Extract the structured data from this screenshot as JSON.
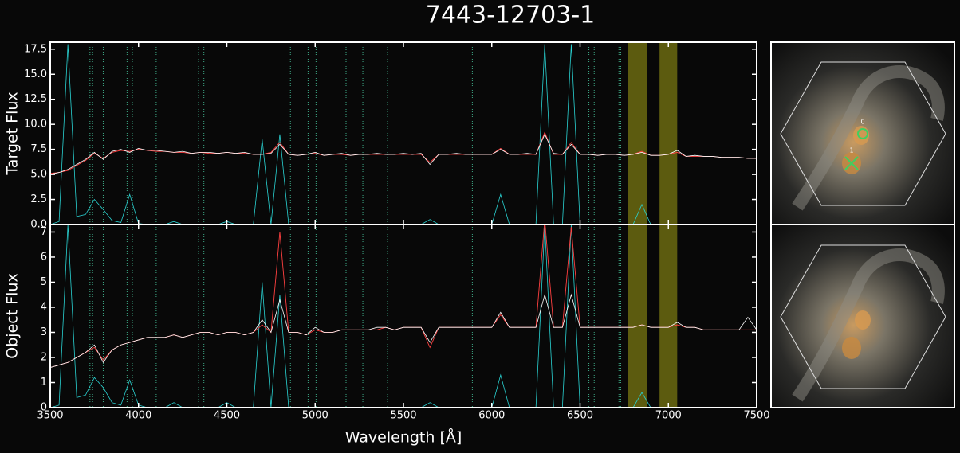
{
  "title": "7443-12703-1",
  "spectral_features": {
    "bands": [
      [
        6770,
        6880
      ],
      [
        6950,
        7050
      ]
    ],
    "band_color": "#6b6a10",
    "lines": [
      3725,
      3740,
      3800,
      3935,
      3965,
      4100,
      4340,
      4370,
      4860,
      4960,
      5005,
      5175,
      5270,
      5410,
      5890,
      6550,
      6580,
      6720,
      6730
    ],
    "line_color": "#3fae8a"
  },
  "image_labels": [
    "0",
    "1"
  ],
  "chart_data": [
    {
      "type": "line",
      "ylabel": "Target Flux",
      "xlim": [
        3500,
        7500
      ],
      "ylim": [
        0,
        18.2
      ],
      "yticks": [
        {
          "value": 0,
          "label": "0.0"
        },
        2.5,
        {
          "value": 5,
          "label": "5.0"
        },
        7.5,
        {
          "value": 10,
          "label": "10.0"
        },
        12.5,
        {
          "value": 15,
          "label": "15.0"
        },
        17.5
      ],
      "x": [
        3500,
        3550,
        3600,
        3650,
        3700,
        3750,
        3800,
        3850,
        3900,
        3950,
        4000,
        4050,
        4100,
        4150,
        4200,
        4250,
        4300,
        4350,
        4400,
        4450,
        4500,
        4550,
        4600,
        4650,
        4700,
        4750,
        4800,
        4850,
        4900,
        4950,
        5000,
        5050,
        5100,
        5150,
        5200,
        5250,
        5300,
        5350,
        5400,
        5450,
        5500,
        5550,
        5600,
        5650,
        5700,
        5750,
        5800,
        5850,
        5900,
        5950,
        6000,
        6050,
        6100,
        6150,
        6200,
        6250,
        6300,
        6350,
        6400,
        6450,
        6500,
        6550,
        6600,
        6650,
        6700,
        6750,
        6800,
        6850,
        6900,
        6950,
        7000,
        7050,
        7100,
        7150,
        7200,
        7250,
        7300,
        7350,
        7400,
        7450,
        7500
      ],
      "series": [
        {
          "color": "#ffffff",
          "values": [
            5.0,
            5.2,
            5.5,
            6.0,
            6.5,
            7.2,
            6.5,
            7.3,
            7.5,
            7.2,
            7.6,
            7.4,
            7.4,
            7.3,
            7.2,
            7.3,
            7.1,
            7.2,
            7.2,
            7.1,
            7.2,
            7.1,
            7.2,
            7.0,
            7.0,
            7.1,
            8.0,
            7.0,
            6.9,
            7.0,
            7.2,
            6.9,
            7.0,
            7.1,
            6.9,
            7.0,
            7.0,
            7.1,
            7.0,
            7.0,
            7.1,
            7.0,
            7.1,
            6.0,
            7.0,
            7.0,
            7.1,
            7.0,
            7.0,
            7.0,
            7.0,
            7.5,
            7.0,
            7.0,
            7.1,
            7.0,
            9.0,
            7.1,
            7.0,
            8.0,
            7.0,
            7.0,
            6.9,
            7.0,
            7.0,
            6.9,
            7.0,
            7.2,
            6.9,
            6.9,
            7.0,
            7.4,
            6.8,
            6.9,
            6.8,
            6.8,
            6.7,
            6.7,
            6.7,
            6.6,
            6.6
          ]
        },
        {
          "color": "#ff4040",
          "values": [
            5.1,
            5.2,
            5.4,
            5.9,
            6.4,
            7.1,
            6.6,
            7.2,
            7.4,
            7.3,
            7.5,
            7.4,
            7.3,
            7.3,
            7.2,
            7.2,
            7.1,
            7.2,
            7.1,
            7.1,
            7.2,
            7.1,
            7.1,
            7.0,
            7.0,
            7.2,
            8.2,
            7.0,
            6.9,
            7.0,
            7.1,
            6.9,
            7.0,
            7.0,
            6.9,
            7.0,
            7.0,
            7.0,
            7.0,
            7.0,
            7.0,
            7.0,
            7.0,
            6.2,
            7.0,
            7.0,
            7.0,
            7.0,
            7.0,
            7.0,
            7.0,
            7.6,
            7.0,
            7.0,
            7.0,
            7.0,
            9.2,
            7.0,
            7.0,
            8.2,
            7.0,
            7.0,
            6.9,
            7.0,
            7.0,
            6.9,
            7.0,
            7.3,
            6.9,
            6.9,
            7.0,
            7.2,
            6.8,
            6.8,
            6.8,
            6.8,
            6.7,
            6.7,
            6.7,
            6.6,
            6.6
          ]
        },
        {
          "color": "#2ad4d4",
          "values": [
            0,
            0.3,
            18,
            0.8,
            1.0,
            2.5,
            1.5,
            0.4,
            0.2,
            3.0,
            0.1,
            0,
            0,
            0,
            0.3,
            0,
            0,
            0,
            0,
            0,
            0.3,
            0,
            0,
            0,
            8.5,
            0,
            9.0,
            0,
            0,
            0,
            0,
            0,
            0,
            0,
            0,
            0,
            0,
            0,
            0,
            0,
            0,
            0,
            0,
            0.5,
            0,
            0,
            0,
            0,
            0,
            0,
            0,
            3.0,
            0,
            0,
            0,
            0,
            18,
            0,
            0,
            18,
            0,
            0,
            0,
            0,
            0,
            0,
            0,
            2.0,
            0,
            0,
            0,
            0,
            0,
            0,
            0,
            0,
            0,
            0,
            0,
            0,
            0
          ]
        }
      ]
    },
    {
      "type": "line",
      "xlabel": "Wavelength [Å]",
      "ylabel": "Object Flux",
      "xlim": [
        3500,
        7500
      ],
      "ylim": [
        0,
        7.3
      ],
      "yticks": [
        0,
        1,
        2,
        3,
        4,
        5,
        6,
        7
      ],
      "xticks": [
        3500,
        4000,
        4500,
        5000,
        5500,
        6000,
        6500,
        7000,
        7500
      ],
      "x": [
        3500,
        3550,
        3600,
        3650,
        3700,
        3750,
        3800,
        3850,
        3900,
        3950,
        4000,
        4050,
        4100,
        4150,
        4200,
        4250,
        4300,
        4350,
        4400,
        4450,
        4500,
        4550,
        4600,
        4650,
        4700,
        4750,
        4800,
        4850,
        4900,
        4950,
        5000,
        5050,
        5100,
        5150,
        5200,
        5250,
        5300,
        5350,
        5400,
        5450,
        5500,
        5550,
        5600,
        5650,
        5700,
        5750,
        5800,
        5850,
        5900,
        5950,
        6000,
        6050,
        6100,
        6150,
        6200,
        6250,
        6300,
        6350,
        6400,
        6450,
        6500,
        6550,
        6600,
        6650,
        6700,
        6750,
        6800,
        6850,
        6900,
        6950,
        7000,
        7050,
        7100,
        7150,
        7200,
        7250,
        7300,
        7350,
        7400,
        7450,
        7500
      ],
      "series": [
        {
          "color": "#ffffff",
          "values": [
            1.6,
            1.7,
            1.8,
            2.0,
            2.2,
            2.5,
            1.8,
            2.3,
            2.5,
            2.6,
            2.7,
            2.8,
            2.8,
            2.8,
            2.9,
            2.8,
            2.9,
            3.0,
            3.0,
            2.9,
            3.0,
            3.0,
            2.9,
            3.0,
            3.5,
            3.0,
            4.3,
            3.0,
            3.0,
            2.9,
            3.2,
            3.0,
            3.0,
            3.1,
            3.1,
            3.1,
            3.1,
            3.2,
            3.2,
            3.1,
            3.2,
            3.2,
            3.2,
            2.6,
            3.2,
            3.2,
            3.2,
            3.2,
            3.2,
            3.2,
            3.2,
            3.8,
            3.2,
            3.2,
            3.2,
            3.2,
            4.5,
            3.2,
            3.2,
            4.5,
            3.2,
            3.2,
            3.2,
            3.2,
            3.2,
            3.2,
            3.2,
            3.3,
            3.2,
            3.2,
            3.2,
            3.4,
            3.2,
            3.2,
            3.1,
            3.1,
            3.1,
            3.1,
            3.1,
            3.6,
            3.1
          ]
        },
        {
          "color": "#ff4040",
          "values": [
            1.6,
            1.7,
            1.8,
            2.0,
            2.2,
            2.4,
            1.9,
            2.3,
            2.5,
            2.6,
            2.7,
            2.8,
            2.8,
            2.8,
            2.9,
            2.8,
            2.9,
            3.0,
            3.0,
            2.9,
            3.0,
            3.0,
            2.9,
            3.0,
            3.3,
            3.0,
            7.0,
            3.0,
            3.0,
            2.9,
            3.1,
            3.0,
            3.0,
            3.1,
            3.1,
            3.1,
            3.1,
            3.1,
            3.2,
            3.1,
            3.2,
            3.2,
            3.2,
            2.4,
            3.2,
            3.2,
            3.2,
            3.2,
            3.2,
            3.2,
            3.2,
            3.7,
            3.2,
            3.2,
            3.2,
            3.2,
            7.5,
            3.2,
            3.2,
            7.2,
            3.2,
            3.2,
            3.2,
            3.2,
            3.2,
            3.2,
            3.2,
            3.3,
            3.2,
            3.2,
            3.2,
            3.3,
            3.2,
            3.2,
            3.1,
            3.1,
            3.1,
            3.1,
            3.1,
            3.1,
            3.1
          ]
        },
        {
          "color": "#2ad4d4",
          "values": [
            0,
            0.1,
            7.3,
            0.4,
            0.5,
            1.2,
            0.8,
            0.2,
            0.1,
            1.1,
            0.1,
            0,
            0,
            0,
            0.2,
            0,
            0,
            0,
            0,
            0,
            0.2,
            0,
            0,
            0,
            5.0,
            0,
            4.5,
            0,
            0,
            0,
            0,
            0,
            0,
            0,
            0,
            0,
            0,
            0,
            0,
            0,
            0,
            0,
            0,
            0.2,
            0,
            0,
            0,
            0,
            0,
            0,
            0,
            1.3,
            0,
            0,
            0,
            0,
            7.3,
            0,
            0,
            7.3,
            0,
            0,
            0,
            0,
            0,
            0,
            0,
            0.6,
            0,
            0,
            0,
            0,
            0,
            0,
            0,
            0,
            0,
            0,
            0,
            0,
            0
          ]
        }
      ]
    }
  ]
}
